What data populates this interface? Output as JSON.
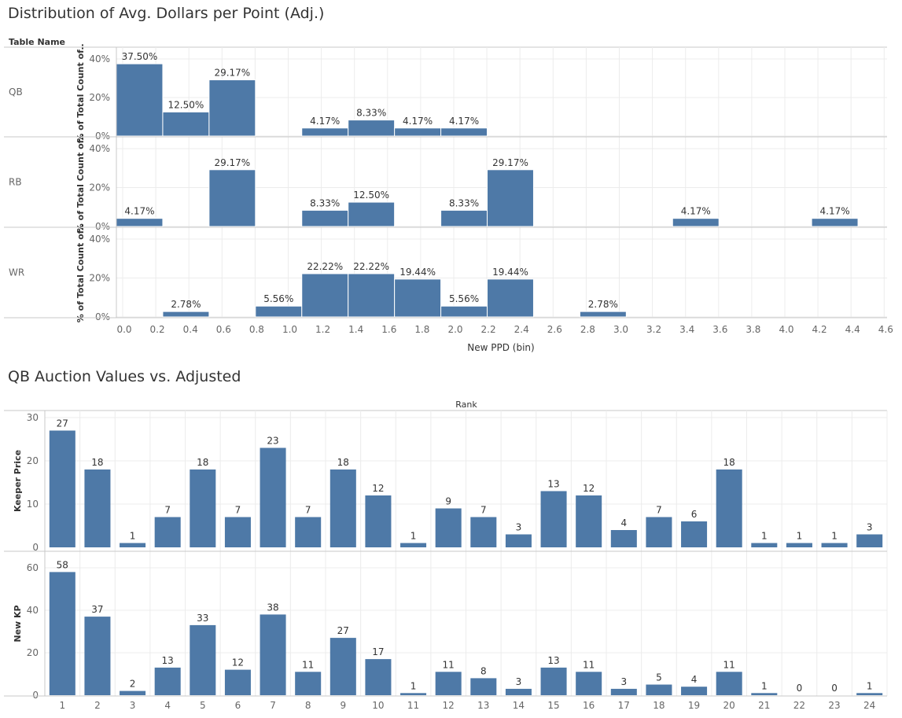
{
  "colors": {
    "bar": "#4e79a7",
    "grid": "#ececec",
    "axis": "#c8c8c8",
    "text": "#333333",
    "muted": "#666666"
  },
  "dashboard": {
    "title1": "Distribution of Avg. Dollars per Point (Adj.)",
    "title2": "QB Auction Values vs. Adjusted"
  },
  "chart_data": [
    {
      "type": "bar",
      "title": "Distribution of Avg. Dollars per Point (Adj.)",
      "row_header": "Table Name",
      "xlabel": "New PPD (bin)",
      "ylabel": "% of Total Count of..",
      "xlim": [
        0.0,
        4.6
      ],
      "bin_width": 0.28,
      "x_ticks": [
        "0.0",
        "0.2",
        "0.4",
        "0.6",
        "0.8",
        "1.0",
        "1.2",
        "1.4",
        "1.6",
        "1.8",
        "2.0",
        "2.2",
        "2.4",
        "2.6",
        "2.8",
        "3.0",
        "3.2",
        "3.4",
        "3.6",
        "3.8",
        "4.0",
        "4.2",
        "4.4",
        "4.6"
      ],
      "y_ticks": [
        "0%",
        "20%",
        "40%"
      ],
      "ylim": [
        0,
        45
      ],
      "rows": [
        {
          "name": "QB",
          "bars": [
            {
              "bin": 0,
              "value": 37.5,
              "label": "37.50%"
            },
            {
              "bin": 1,
              "value": 12.5,
              "label": "12.50%"
            },
            {
              "bin": 2,
              "value": 29.17,
              "label": "29.17%"
            },
            {
              "bin": 4,
              "value": 4.17,
              "label": "4.17%"
            },
            {
              "bin": 5,
              "value": 8.33,
              "label": "8.33%"
            },
            {
              "bin": 6,
              "value": 4.17,
              "label": "4.17%"
            },
            {
              "bin": 7,
              "value": 4.17,
              "label": "4.17%"
            }
          ]
        },
        {
          "name": "RB",
          "bars": [
            {
              "bin": 0,
              "value": 4.17,
              "label": "4.17%"
            },
            {
              "bin": 2,
              "value": 29.17,
              "label": "29.17%"
            },
            {
              "bin": 4,
              "value": 8.33,
              "label": "8.33%"
            },
            {
              "bin": 5,
              "value": 12.5,
              "label": "12.50%"
            },
            {
              "bin": 7,
              "value": 8.33,
              "label": "8.33%"
            },
            {
              "bin": 8,
              "value": 29.17,
              "label": "29.17%"
            },
            {
              "bin": 12,
              "value": 4.17,
              "label": "4.17%"
            },
            {
              "bin": 15,
              "value": 4.17,
              "label": "4.17%"
            }
          ]
        },
        {
          "name": "WR",
          "bars": [
            {
              "bin": 1,
              "value": 2.78,
              "label": "2.78%"
            },
            {
              "bin": 3,
              "value": 5.56,
              "label": "5.56%"
            },
            {
              "bin": 4,
              "value": 22.22,
              "label": "22.22%"
            },
            {
              "bin": 5,
              "value": 22.22,
              "label": "22.22%"
            },
            {
              "bin": 6,
              "value": 19.44,
              "label": "19.44%"
            },
            {
              "bin": 7,
              "value": 5.56,
              "label": "5.56%"
            },
            {
              "bin": 8,
              "value": 19.44,
              "label": "19.44%"
            },
            {
              "bin": 10,
              "value": 2.78,
              "label": "2.78%"
            }
          ]
        }
      ]
    },
    {
      "type": "bar",
      "title": "QB Auction Values vs. Adjusted",
      "column_header": "Rank",
      "categories": [
        "1",
        "2",
        "3",
        "4",
        "5",
        "6",
        "7",
        "8",
        "9",
        "10",
        "11",
        "12",
        "13",
        "14",
        "15",
        "16",
        "17",
        "18",
        "19",
        "20",
        "21",
        "22",
        "23",
        "24"
      ],
      "series": [
        {
          "name": "Keeper Price",
          "values": [
            27,
            18,
            1,
            7,
            18,
            7,
            23,
            7,
            18,
            12,
            1,
            9,
            7,
            3,
            13,
            12,
            4,
            7,
            6,
            18,
            1,
            1,
            1,
            3
          ],
          "y_ticks": [
            0,
            10,
            20,
            30
          ],
          "ylim": [
            0,
            30
          ]
        },
        {
          "name": "New KP",
          "values": [
            58,
            37,
            2,
            13,
            33,
            12,
            38,
            11,
            27,
            17,
            1,
            11,
            8,
            3,
            13,
            11,
            3,
            5,
            4,
            11,
            1,
            0,
            0,
            1
          ],
          "y_ticks": [
            0,
            20,
            40,
            60
          ],
          "ylim": [
            0,
            65
          ]
        }
      ]
    }
  ]
}
